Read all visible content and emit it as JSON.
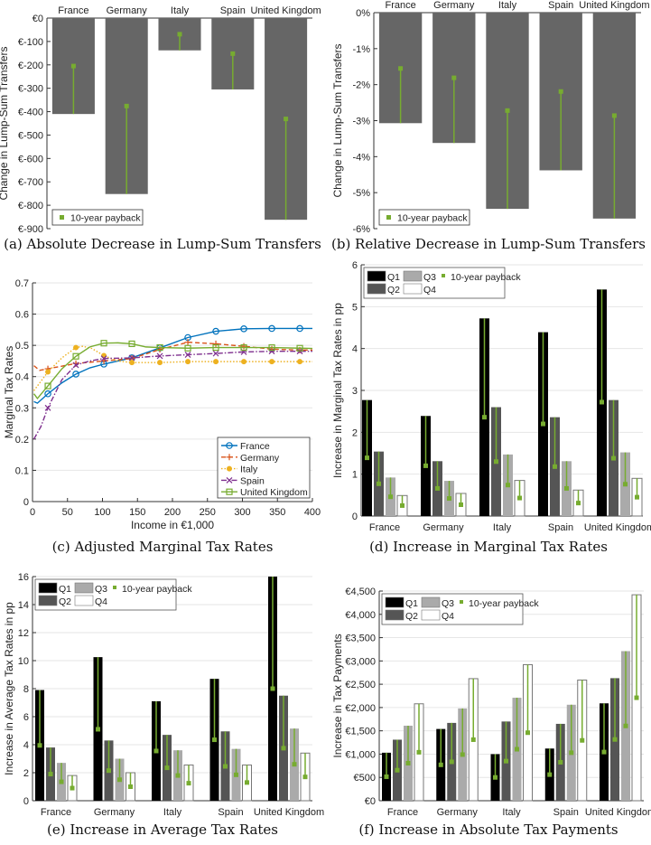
{
  "colors": {
    "bar_gray": "#666666",
    "payback": "#77ac30",
    "Q1": "#000000",
    "Q2": "#555555",
    "Q3": "#aaaaaa",
    "Q4": "#ffffff",
    "France": "#0072bd",
    "Germany": "#d95319",
    "Italy": "#edb120",
    "Spain": "#7e2f8e",
    "United Kingdom": "#77ac30"
  },
  "captions": {
    "a": "(a)  Absolute Decrease in Lump-Sum Transfers",
    "b": "(b)  Relative Decrease in Lump-Sum Transfers",
    "c": "(c)  Adjusted Marginal Tax Rates",
    "d": "(d)  Increase in Marginal Tax Rates",
    "e": "(e)  Increase in Average Tax Rates",
    "f": "(f)  Increase in Absolute Tax Payments"
  },
  "chart_data": [
    {
      "id": "a",
      "type": "bar",
      "categories": [
        "France",
        "Germany",
        "Italy",
        "Spain",
        "United Kingdom"
      ],
      "values": [
        -410,
        -752,
        -138,
        -305,
        -862
      ],
      "payback": [
        -205,
        -376,
        -69,
        -152,
        -431
      ],
      "ylabel": "Change in Lump-Sum Transfers",
      "ylim": [
        -900,
        0
      ],
      "yticks": [
        0,
        -100,
        -200,
        -300,
        -400,
        -500,
        -600,
        -700,
        -800,
        -900
      ],
      "yticklabels": [
        "€0",
        "€-100",
        "€-200",
        "€-300",
        "€-400",
        "€-500",
        "€-600",
        "€-700",
        "€-800",
        "€-900"
      ],
      "legend": [
        "10-year payback"
      ],
      "legend_position": "bottom-left"
    },
    {
      "id": "b",
      "type": "bar",
      "categories": [
        "France",
        "Germany",
        "Italy",
        "Spain",
        "United Kingdom"
      ],
      "values": [
        -3.07,
        -3.62,
        -5.45,
        -4.38,
        -5.72
      ],
      "payback": [
        -1.55,
        -1.81,
        -2.72,
        -2.19,
        -2.86
      ],
      "ylabel": "Change in Lump-Sum Transfers",
      "ylim": [
        -6,
        0
      ],
      "yticks": [
        0,
        -1,
        -2,
        -3,
        -4,
        -5,
        -6
      ],
      "yticklabels": [
        "0%",
        "-1%",
        "-2%",
        "-3%",
        "-4%",
        "-5%",
        "-6%"
      ],
      "legend": [
        "10-year payback"
      ],
      "legend_position": "bottom-left"
    },
    {
      "id": "c",
      "type": "line",
      "xlabel": "Income in €1,000",
      "ylabel": "Marginal Tax Rates",
      "xlim": [
        0,
        400
      ],
      "ylim": [
        0,
        0.7
      ],
      "xticks": [
        0,
        50,
        100,
        150,
        200,
        250,
        300,
        350,
        400
      ],
      "yticks": [
        0,
        0.1,
        0.2,
        0.3,
        0.4,
        0.5,
        0.6,
        0.7
      ],
      "grid": true,
      "legend_position": "bottom-right",
      "series": [
        {
          "name": "France",
          "marker": "o",
          "x": [
            2,
            7,
            22,
            42,
            62,
            82,
            102,
            142,
            182,
            222,
            262,
            302,
            342,
            382,
            400
          ],
          "y": [
            0.32,
            0.315,
            0.345,
            0.38,
            0.408,
            0.428,
            0.44,
            0.46,
            0.492,
            0.525,
            0.545,
            0.553,
            0.554,
            0.554,
            0.554
          ]
        },
        {
          "name": "Germany",
          "marker": "+",
          "x": [
            2,
            10,
            22,
            62,
            102,
            142,
            182,
            222,
            262,
            302,
            342,
            382,
            400
          ],
          "y": [
            0.435,
            0.42,
            0.425,
            0.442,
            0.45,
            0.458,
            0.487,
            0.51,
            0.505,
            0.497,
            0.488,
            0.485,
            0.485
          ]
        },
        {
          "name": "Italy",
          "marker": "*",
          "x": [
            2,
            22,
            42,
            62,
            72,
            85,
            102,
            122,
            142,
            182,
            222,
            262,
            302,
            342,
            382,
            400
          ],
          "y": [
            0.355,
            0.415,
            0.46,
            0.493,
            0.497,
            0.49,
            0.467,
            0.45,
            0.445,
            0.445,
            0.448,
            0.448,
            0.448,
            0.448,
            0.448,
            0.448
          ]
        },
        {
          "name": "Spain",
          "marker": "x",
          "x": [
            2,
            12,
            22,
            42,
            62,
            82,
            102,
            142,
            182,
            222,
            262,
            302,
            342,
            382,
            400
          ],
          "y": [
            0.2,
            0.24,
            0.3,
            0.39,
            0.437,
            0.45,
            0.458,
            0.46,
            0.466,
            0.47,
            0.474,
            0.479,
            0.481,
            0.481,
            0.481
          ]
        },
        {
          "name": "United Kingdom",
          "marker": "s",
          "x": [
            2,
            7,
            22,
            42,
            62,
            82,
            102,
            122,
            142,
            162,
            182,
            222,
            262,
            302,
            342,
            382,
            400
          ],
          "y": [
            0.345,
            0.33,
            0.37,
            0.425,
            0.465,
            0.495,
            0.507,
            0.508,
            0.505,
            0.495,
            0.493,
            0.491,
            0.493,
            0.493,
            0.493,
            0.491,
            0.49
          ]
        }
      ]
    },
    {
      "id": "d",
      "type": "bar",
      "categories": [
        "France",
        "Germany",
        "Italy",
        "Spain",
        "United Kingdom"
      ],
      "ylabel": "Increase in Marginal Tax Rates in pp",
      "ylim": [
        0,
        6
      ],
      "yticks": [
        0,
        1,
        2,
        3,
        4,
        5,
        6
      ],
      "yticklabels": [
        "0",
        "1",
        "2",
        "3",
        "4",
        "5",
        "6"
      ],
      "legend_position": "top-left",
      "series": [
        {
          "name": "Q1",
          "values": [
            2.77,
            2.39,
            4.72,
            4.39,
            5.41
          ],
          "payback": [
            1.39,
            1.2,
            2.36,
            2.2,
            2.72
          ]
        },
        {
          "name": "Q2",
          "values": [
            1.54,
            1.31,
            2.6,
            2.36,
            2.77
          ],
          "payback": [
            0.77,
            0.66,
            1.3,
            1.18,
            1.38
          ]
        },
        {
          "name": "Q3",
          "values": [
            0.92,
            0.84,
            1.47,
            1.31,
            1.52
          ],
          "payback": [
            0.46,
            0.42,
            0.74,
            0.66,
            0.76
          ]
        },
        {
          "name": "Q4",
          "values": [
            0.49,
            0.54,
            0.85,
            0.62,
            0.9
          ],
          "payback": [
            0.25,
            0.27,
            0.43,
            0.31,
            0.45
          ]
        }
      ],
      "legend": [
        "Q1",
        "Q2",
        "Q3",
        "Q4",
        "10-year payback"
      ]
    },
    {
      "id": "e",
      "type": "bar",
      "categories": [
        "France",
        "Germany",
        "Italy",
        "Spain",
        "United Kingdom"
      ],
      "ylabel": "Increase in Average Tax Rates in pp",
      "ylim": [
        0,
        16
      ],
      "yticks": [
        0,
        2,
        4,
        6,
        8,
        10,
        12,
        14,
        16
      ],
      "yticklabels": [
        "0",
        "2",
        "4",
        "6",
        "8",
        "10",
        "12",
        "14",
        "16"
      ],
      "legend_position": "top-left",
      "series": [
        {
          "name": "Q1",
          "values": [
            7.9,
            10.25,
            7.1,
            8.7,
            16
          ],
          "payback": [
            3.95,
            5.1,
            3.55,
            4.35,
            8.0
          ]
        },
        {
          "name": "Q2",
          "values": [
            3.8,
            4.3,
            4.7,
            4.95,
            7.5
          ],
          "payback": [
            1.9,
            2.15,
            2.35,
            2.45,
            3.75
          ]
        },
        {
          "name": "Q3",
          "values": [
            2.7,
            3.0,
            3.6,
            3.7,
            5.15
          ],
          "payback": [
            1.35,
            1.5,
            1.8,
            1.85,
            2.6
          ]
        },
        {
          "name": "Q4",
          "values": [
            1.8,
            2.0,
            2.55,
            2.55,
            3.4
          ],
          "payback": [
            0.9,
            1.0,
            1.25,
            1.3,
            1.7
          ]
        }
      ],
      "legend": [
        "Q1",
        "Q2",
        "Q3",
        "Q4",
        "10-year payback"
      ]
    },
    {
      "id": "f",
      "type": "bar",
      "categories": [
        "France",
        "Germany",
        "Italy",
        "Spain",
        "United Kingdom"
      ],
      "ylabel": "Increase in Tax Payments",
      "ylim": [
        0,
        4500
      ],
      "yticks": [
        0,
        500,
        1000,
        1500,
        2000,
        2500,
        3000,
        3500,
        4000,
        4500
      ],
      "yticklabels": [
        "€0",
        "€500",
        "€1,000",
        "€1,500",
        "€2,000",
        "€2,500",
        "€3,000",
        "€3,500",
        "€4,000",
        "€4,500"
      ],
      "legend_position": "top-left",
      "series": [
        {
          "name": "Q1",
          "values": [
            1030,
            1540,
            1000,
            1120,
            2090
          ],
          "payback": [
            515,
            770,
            500,
            560,
            1045
          ]
        },
        {
          "name": "Q2",
          "values": [
            1310,
            1670,
            1700,
            1650,
            2630
          ],
          "payback": [
            655,
            835,
            850,
            825,
            1315
          ]
        },
        {
          "name": "Q3",
          "values": [
            1610,
            1980,
            2210,
            2060,
            3210
          ],
          "payback": [
            805,
            990,
            1105,
            1030,
            1605
          ]
        },
        {
          "name": "Q4",
          "values": [
            2080,
            2620,
            2920,
            2590,
            4420
          ],
          "payback": [
            1040,
            1310,
            1460,
            1295,
            2210
          ]
        }
      ],
      "legend": [
        "Q1",
        "Q2",
        "Q3",
        "Q4",
        "10-year payback"
      ]
    }
  ]
}
